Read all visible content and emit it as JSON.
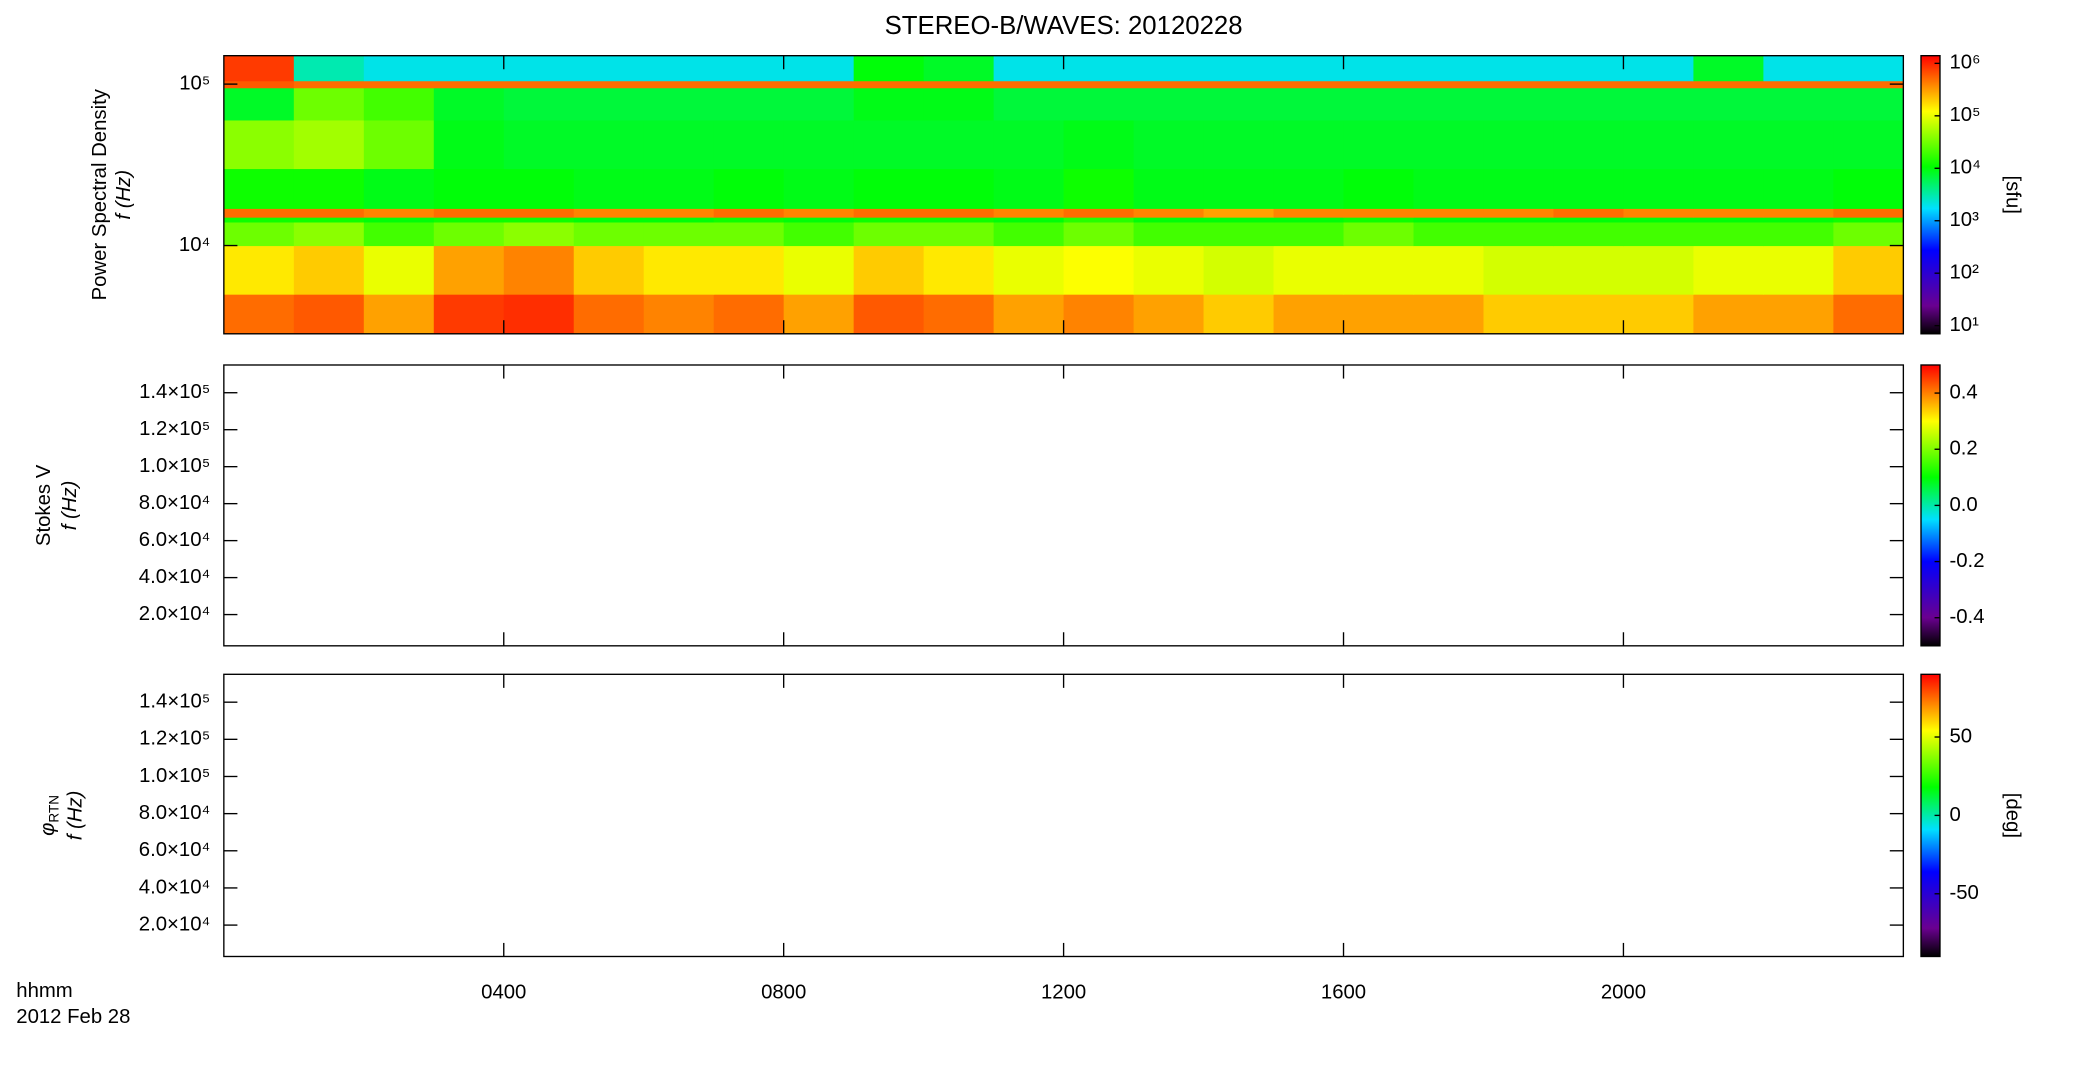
{
  "chart_data": [
    {
      "type": "heatmap",
      "title": "STEREO-B/WAVES: 20120228",
      "ylabel": [
        "Power Spectral Density",
        "f (Hz)"
      ],
      "ylog": true,
      "ylim": [
        2840,
        150000
      ],
      "yticks": [
        {
          "value": 10000,
          "label": "10⁴"
        },
        {
          "value": 100000,
          "label": "10⁵"
        }
      ],
      "x_bins": [
        0,
        1,
        2,
        3,
        4,
        5,
        6,
        7,
        8,
        9,
        10,
        11,
        12,
        13,
        14,
        15,
        16,
        17,
        18,
        19,
        20,
        21,
        22,
        23,
        24
      ],
      "y_bins": [
        2840,
        5000,
        10000,
        14000,
        15000,
        17000,
        30000,
        60000,
        95000,
        105000,
        150000
      ],
      "z": [
        [
          500000,
          600000,
          300000,
          800000,
          900000,
          500000,
          400000,
          500000,
          300000,
          600000,
          500000,
          300000,
          400000,
          300000,
          200000,
          300000,
          300000,
          300000,
          200000,
          200000,
          200000,
          300000,
          300000,
          500000
        ],
        [
          150000,
          200000,
          100000,
          300000,
          400000,
          200000,
          150000,
          150000,
          100000,
          200000,
          150000,
          100000,
          120000,
          100000,
          80000,
          100000,
          100000,
          100000,
          80000,
          80000,
          80000,
          100000,
          100000,
          200000
        ],
        [
          30000,
          40000,
          20000,
          30000,
          40000,
          30000,
          30000,
          30000,
          20000,
          30000,
          30000,
          20000,
          30000,
          20000,
          20000,
          20000,
          30000,
          20000,
          20000,
          20000,
          20000,
          20000,
          20000,
          30000
        ],
        [
          12000,
          12000,
          10000,
          12000,
          12000,
          10000,
          10000,
          12000,
          10000,
          12000,
          12000,
          10000,
          15000,
          10000,
          10000,
          10000,
          12000,
          10000,
          10000,
          10000,
          10000,
          10000,
          10000,
          12000
        ],
        [
          500000,
          500000,
          400000,
          500000,
          500000,
          400000,
          400000,
          500000,
          400000,
          500000,
          500000,
          400000,
          500000,
          400000,
          300000,
          400000,
          400000,
          400000,
          400000,
          500000,
          400000,
          400000,
          400000,
          500000
        ],
        [
          12000,
          12000,
          9000,
          10000,
          10000,
          9000,
          9000,
          10000,
          9000,
          10000,
          10000,
          9000,
          12000,
          9000,
          9000,
          9000,
          10000,
          9000,
          9000,
          9000,
          9000,
          9000,
          9000,
          10000
        ],
        [
          40000,
          50000,
          30000,
          9000,
          8000,
          8000,
          8000,
          8000,
          8000,
          8000,
          8000,
          8000,
          9000,
          8000,
          8000,
          8000,
          8000,
          8000,
          8000,
          8000,
          8000,
          8000,
          8000,
          8000
        ],
        [
          8000,
          30000,
          20000,
          8000,
          7000,
          7000,
          7000,
          7000,
          7000,
          9000,
          9000,
          7000,
          7000,
          7000,
          7000,
          7000,
          7000,
          7000,
          7000,
          7000,
          7000,
          7000,
          7000,
          7000
        ],
        [
          600000,
          500000,
          500000,
          500000,
          500000,
          500000,
          500000,
          500000,
          500000,
          500000,
          500000,
          500000,
          500000,
          500000,
          500000,
          500000,
          500000,
          500000,
          500000,
          500000,
          500000,
          500000,
          500000,
          500000
        ],
        [
          800000,
          3000,
          2000,
          2000,
          2000,
          2000,
          2000,
          2000,
          2000,
          10000,
          8000,
          2000,
          2000,
          2000,
          2000,
          2000,
          2000,
          2000,
          2000,
          2000,
          2000,
          8000,
          2000,
          2000
        ]
      ],
      "colormap": "rainbow",
      "clog": true,
      "clim": [
        7,
        1400000
      ],
      "cticks": [
        {
          "value": 10,
          "label": "10¹"
        },
        {
          "value": 100,
          "label": "10²"
        },
        {
          "value": 1000,
          "label": "10³"
        },
        {
          "value": 10000,
          "label": "10⁴"
        },
        {
          "value": 100000,
          "label": "10⁵"
        },
        {
          "value": 1000000,
          "label": "10⁶"
        }
      ],
      "clabel": "[sfu]"
    },
    {
      "type": "heatmap",
      "ylabel": [
        "Stokes V",
        "f (Hz)"
      ],
      "ylim": [
        3100,
        155000
      ],
      "yticks": [
        {
          "value": 20000,
          "label": "2.0×10⁴"
        },
        {
          "value": 40000,
          "label": "4.0×10⁴"
        },
        {
          "value": 60000,
          "label": "6.0×10⁴"
        },
        {
          "value": 80000,
          "label": "8.0×10⁴"
        },
        {
          "value": 100000,
          "label": "1.0×10⁵"
        },
        {
          "value": 120000,
          "label": "1.2×10⁵"
        },
        {
          "value": 140000,
          "label": "1.4×10⁵"
        }
      ],
      "colormap": "rainbow",
      "clim": [
        -0.5,
        0.5
      ],
      "cticks": [
        -0.4,
        -0.2,
        {
          "value": 0,
          "label": "0.0"
        },
        0.2,
        0.4
      ]
    },
    {
      "type": "heatmap",
      "ylabel_symbol": "φ",
      "ylabel_sub": "RTN",
      "ylabel": [
        "f (Hz)"
      ],
      "ylim": [
        3100,
        155000
      ],
      "yticks": [
        {
          "value": 20000,
          "label": "2.0×10⁴"
        },
        {
          "value": 40000,
          "label": "4.0×10⁴"
        },
        {
          "value": 60000,
          "label": "6.0×10⁴"
        },
        {
          "value": 80000,
          "label": "8.0×10⁴"
        },
        {
          "value": 100000,
          "label": "1.0×10⁵"
        },
        {
          "value": 120000,
          "label": "1.2×10⁵"
        },
        {
          "value": 140000,
          "label": "1.4×10⁵"
        }
      ],
      "colormap": "rainbow",
      "clim": [
        -90,
        90
      ],
      "cticks": [
        -50,
        0,
        50
      ],
      "clabel": "[deg]",
      "xlim": [
        0,
        24
      ],
      "xticks": [
        {
          "value": 4,
          "label": "0400"
        },
        {
          "value": 8,
          "label": "0800"
        },
        {
          "value": 12,
          "label": "1200"
        },
        {
          "value": 16,
          "label": "1600"
        },
        {
          "value": 20,
          "label": "2000"
        }
      ],
      "xlabel": "hhmm",
      "date": "2012 Feb 28"
    }
  ]
}
